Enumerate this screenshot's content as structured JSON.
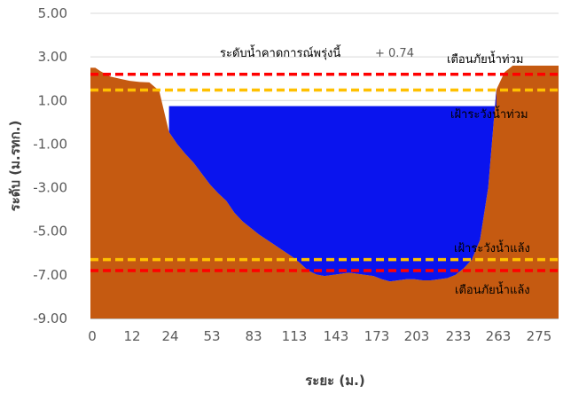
{
  "chart_data": {
    "type": "area",
    "title": "",
    "xlabel": "ระยะ (ม.)",
    "ylabel": "ระดับ (ม.รทก.)",
    "ylim": [
      -9,
      5
    ],
    "yticks": [
      "5.00",
      "3.00",
      "1.00",
      "-1.00",
      "-3.00",
      "-5.00",
      "-7.00",
      "-9.00"
    ],
    "ytick_values": [
      5,
      3,
      1,
      -1,
      -3,
      -5,
      -7,
      -9
    ],
    "xticks": [
      "0",
      "12",
      "24",
      "53",
      "83",
      "113",
      "143",
      "173",
      "203",
      "233",
      "263",
      "275"
    ],
    "grid": "horizontal",
    "water_level": 0.74,
    "series": [
      {
        "kind": "riverbed",
        "color": "#c55a11",
        "x": [
          0,
          3,
          6,
          12,
          18,
          24,
          30,
          36,
          42,
          48,
          53,
          58,
          63,
          68,
          73,
          78,
          83,
          88,
          93,
          98,
          103,
          108,
          113,
          118,
          123,
          128,
          133,
          138,
          143,
          148,
          153,
          158,
          163,
          168,
          173,
          178,
          183,
          188,
          193,
          198,
          203,
          208,
          213,
          218,
          223,
          228,
          233,
          238,
          243,
          248,
          253,
          258,
          263,
          268,
          272,
          275,
          279,
          283,
          286
        ],
        "y": [
          2.5,
          2.5,
          2.35,
          2.1,
          2.0,
          1.9,
          1.85,
          1.83,
          1.45,
          -0.45,
          -1.0,
          -1.45,
          -1.85,
          -2.35,
          -2.85,
          -3.25,
          -3.6,
          -4.15,
          -4.55,
          -4.85,
          -5.15,
          -5.4,
          -5.65,
          -5.9,
          -6.15,
          -6.45,
          -6.8,
          -6.98,
          -7.05,
          -7.0,
          -6.95,
          -6.9,
          -6.95,
          -7.0,
          -7.05,
          -7.2,
          -7.3,
          -7.25,
          -7.2,
          -7.2,
          -7.25,
          -7.25,
          -7.2,
          -7.15,
          -7.0,
          -6.7,
          -6.3,
          -5.4,
          -3.0,
          1.5,
          2.3,
          2.6,
          2.6,
          2.6,
          2.6,
          2.6,
          2.6,
          2.6,
          2.6
        ]
      },
      {
        "kind": "water",
        "color": "#0a14ee",
        "level": 0.74,
        "x_start": 48,
        "x_end": 248,
        "bottom_y": [
          -0.45,
          -1.0,
          -1.45,
          -1.85,
          -2.35,
          -2.85,
          -3.25,
          -3.6,
          -4.15,
          -4.55,
          -4.85,
          -5.15,
          -5.4,
          -5.65,
          -5.9,
          -6.15,
          -6.45,
          -6.8,
          -6.98,
          -7.05,
          -7.0,
          -6.95,
          -6.9,
          -6.95,
          -7.0,
          -7.05,
          -7.2,
          -7.3,
          -7.25,
          -7.2,
          -7.2,
          -7.25,
          -7.25,
          -7.2,
          -7.15,
          -7.0,
          -6.7,
          -6.3,
          -5.4,
          -3.0,
          1.5
        ]
      }
    ],
    "reference_lines": [
      {
        "name": "flood_warning",
        "label": "เตือนภัยน้ำท่วม",
        "y": 2.2,
        "color": "#ff0000",
        "style": "dashed"
      },
      {
        "name": "flood_watch",
        "label": "เฝ้าระวังน้ำท่วม",
        "y": 1.48,
        "color": "#ffc000",
        "style": "dashed"
      },
      {
        "name": "drought_watch",
        "label": "เฝ้าระวังน้ำแล้ง",
        "y": -6.3,
        "color": "#ffc000",
        "style": "dashed"
      },
      {
        "name": "drought_warning",
        "label": "เตือนภัยน้ำแล้ง",
        "y": -6.8,
        "color": "#ff0000",
        "style": "dashed"
      }
    ],
    "annotations": {
      "forecast_label": "ระดับน้ำคาดการณ์พรุ่งนี้",
      "forecast_value": "+ 0.74"
    }
  }
}
